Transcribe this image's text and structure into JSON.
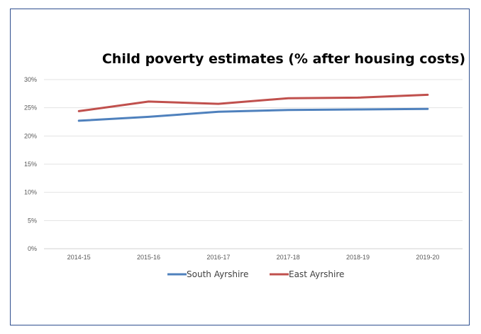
{
  "chart_data": {
    "type": "line",
    "title": "Child poverty estimates (% after housing costs)",
    "categories": [
      "2014-15",
      "2015-16",
      "2016-17",
      "2017-18",
      "2018-19",
      "2019-20"
    ],
    "y_ticks": [
      "0%",
      "5%",
      "10%",
      "15%",
      "20%",
      "25%",
      "30%"
    ],
    "ylim": [
      0,
      30
    ],
    "grid": true,
    "legend_position": "bottom",
    "series": [
      {
        "name": "South Ayrshire",
        "color": "#4f81bd",
        "values": [
          22.7,
          23.4,
          24.3,
          24.6,
          24.7,
          24.8
        ]
      },
      {
        "name": "East Ayrshire",
        "color": "#c0504d",
        "values": [
          24.4,
          26.1,
          25.7,
          26.7,
          26.8,
          27.3
        ]
      }
    ]
  }
}
